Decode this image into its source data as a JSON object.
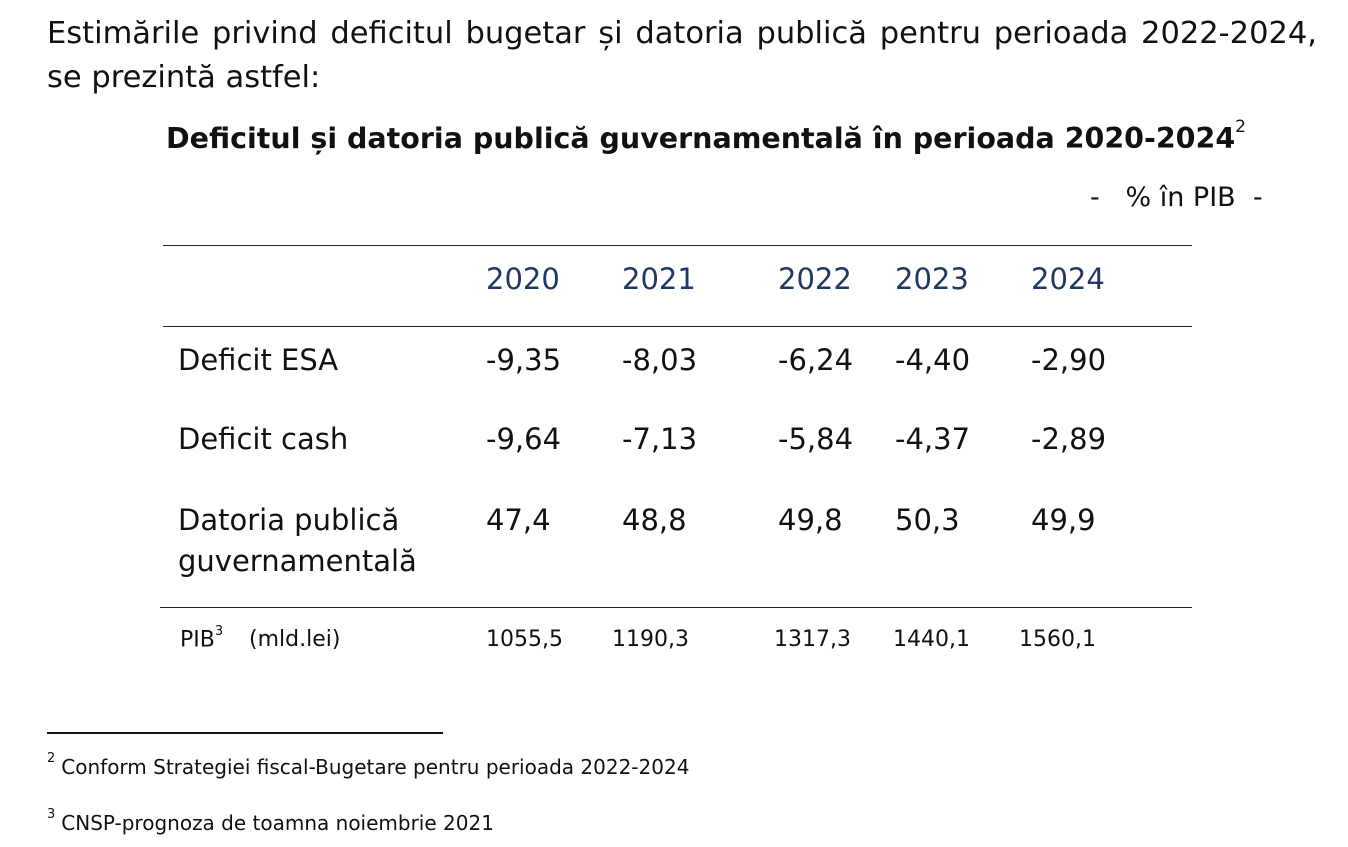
{
  "intro_text": "Estimările privind deficitul bugetar și datoria publică pentru perioada 2022-2024, se prezintă astfel:",
  "table": {
    "title": "Deficitul și datoria publică guvernamentală în perioada 2020-2024",
    "title_footnote_ref": "2",
    "unit": "-   % în PIB  -",
    "years": [
      "2020",
      "2021",
      "2022",
      "2023",
      "2024"
    ],
    "rows": [
      {
        "label_line1": "Deficit ESA",
        "label_line2": "",
        "values": [
          "-9,35",
          "-8,03",
          "-6,24",
          "-4,40",
          "-2,90"
        ]
      },
      {
        "label_line1": "Deficit cash",
        "label_line2": "",
        "values": [
          "-9,64",
          "-7,13",
          "-5,84",
          "-4,37",
          "-2,89"
        ]
      },
      {
        "label_line1": "Datoria publică",
        "label_line2": "guvernamentală",
        "values": [
          "47,4",
          "48,8",
          "49,8",
          "50,3",
          "49,9"
        ]
      }
    ],
    "pib_row": {
      "label": "PIB",
      "footnote_ref": "3",
      "unit_label": "(mld.lei)",
      "values": [
        "1055,5",
        "1190,3",
        "1317,3",
        "1440,1",
        "1560,1"
      ]
    }
  },
  "footnotes": [
    {
      "ref": "2",
      "text": "Conform Strategiei fiscal-Bugetare pentru perioada 2022-2024"
    },
    {
      "ref": "3",
      "text": "CNSP-prognoza de toamna noiembrie 2021"
    }
  ]
}
